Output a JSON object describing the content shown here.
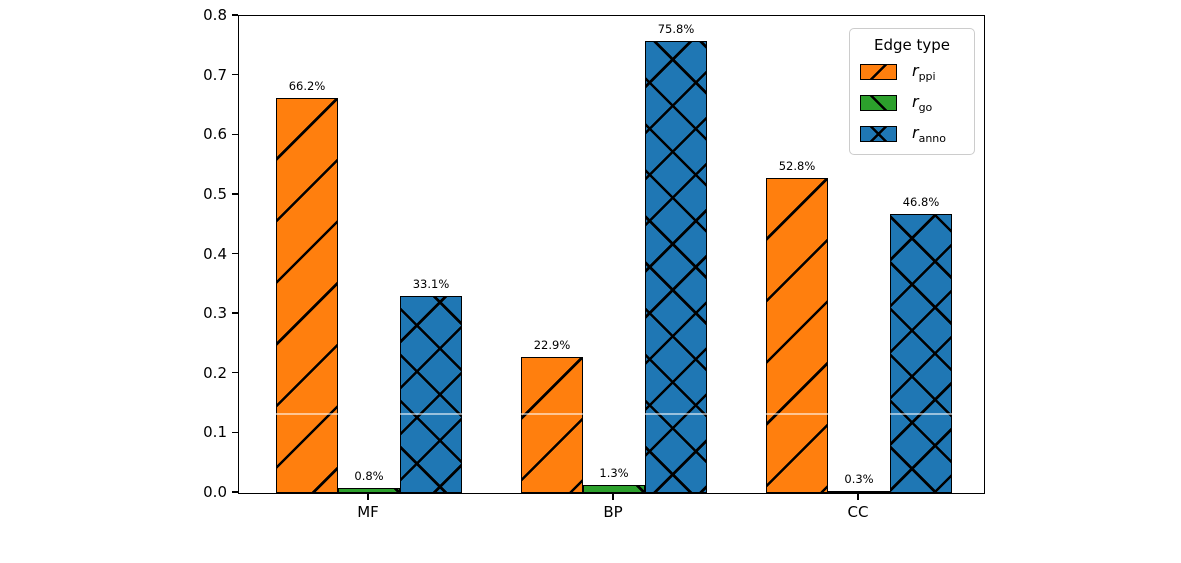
{
  "chart_data": {
    "type": "bar",
    "title": "",
    "xlabel": "",
    "ylabel": "",
    "categories": [
      "MF",
      "BP",
      "CC"
    ],
    "series": [
      {
        "name": "r_ppi",
        "label_main": "r",
        "label_sub": "ppi",
        "color": "#ff7f0e",
        "hatch": "/",
        "values": [
          0.662,
          0.229,
          0.528
        ],
        "value_labels": [
          "66.2%",
          "22.9%",
          "52.8%"
        ]
      },
      {
        "name": "r_go",
        "label_main": "r",
        "label_sub": "go",
        "color": "#2ca02c",
        "hatch": "\\",
        "values": [
          0.008,
          0.013,
          0.003
        ],
        "value_labels": [
          "0.8%",
          "1.3%",
          "0.3%"
        ]
      },
      {
        "name": "r_anno",
        "label_main": "r",
        "label_sub": "anno",
        "color": "#1f77b4",
        "hatch": "x",
        "values": [
          0.331,
          0.758,
          0.468
        ],
        "value_labels": [
          "33.1%",
          "75.8%",
          "46.8%"
        ]
      }
    ],
    "ylim": [
      0.0,
      0.8
    ],
    "yticks": [
      "0.0",
      "0.1",
      "0.2",
      "0.3",
      "0.4",
      "0.5",
      "0.6",
      "0.7",
      "0.8"
    ],
    "grid": false,
    "white_hline_y": 0.134,
    "legend": {
      "title": "Edge type",
      "position": "upper right"
    },
    "bar_edge_color": "#000000"
  }
}
